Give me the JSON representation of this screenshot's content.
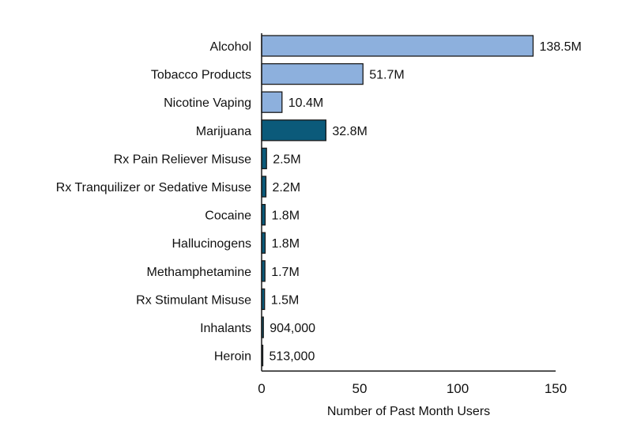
{
  "chart_data": {
    "type": "bar",
    "orientation": "horizontal",
    "title": "",
    "xlabel": "Number of Past Month Users",
    "ylabel": "",
    "xlim": [
      0,
      150
    ],
    "xticks": [
      "0",
      "50",
      "100",
      "150"
    ],
    "xtick_values": [
      0,
      50,
      100,
      150
    ],
    "grid": false,
    "colors": {
      "light": "#8db0dd",
      "dark": "#0b5a7a",
      "stroke": "#1a1a1a"
    },
    "categories": [
      "Alcohol",
      "Tobacco Products",
      "Nicotine Vaping",
      "Marijuana",
      "Rx Pain Reliever Misuse",
      "Rx Tranquilizer or Sedative Misuse",
      "Cocaine",
      "Hallucinogens",
      "Methamphetamine",
      "Rx Stimulant Misuse",
      "Inhalants",
      "Heroin"
    ],
    "values": [
      138.5,
      51.7,
      10.4,
      32.8,
      2.5,
      2.2,
      1.8,
      1.8,
      1.7,
      1.5,
      0.904,
      0.513
    ],
    "labels": [
      "138.5M",
      "51.7M",
      "10.4M",
      "32.8M",
      "2.5M",
      "2.2M",
      "1.8M",
      "1.8M",
      "1.7M",
      "1.5M",
      "904,000",
      "513,000"
    ],
    "color_group": [
      "light",
      "light",
      "light",
      "dark",
      "dark",
      "dark",
      "dark",
      "dark",
      "dark",
      "dark",
      "dark",
      "dark"
    ]
  }
}
